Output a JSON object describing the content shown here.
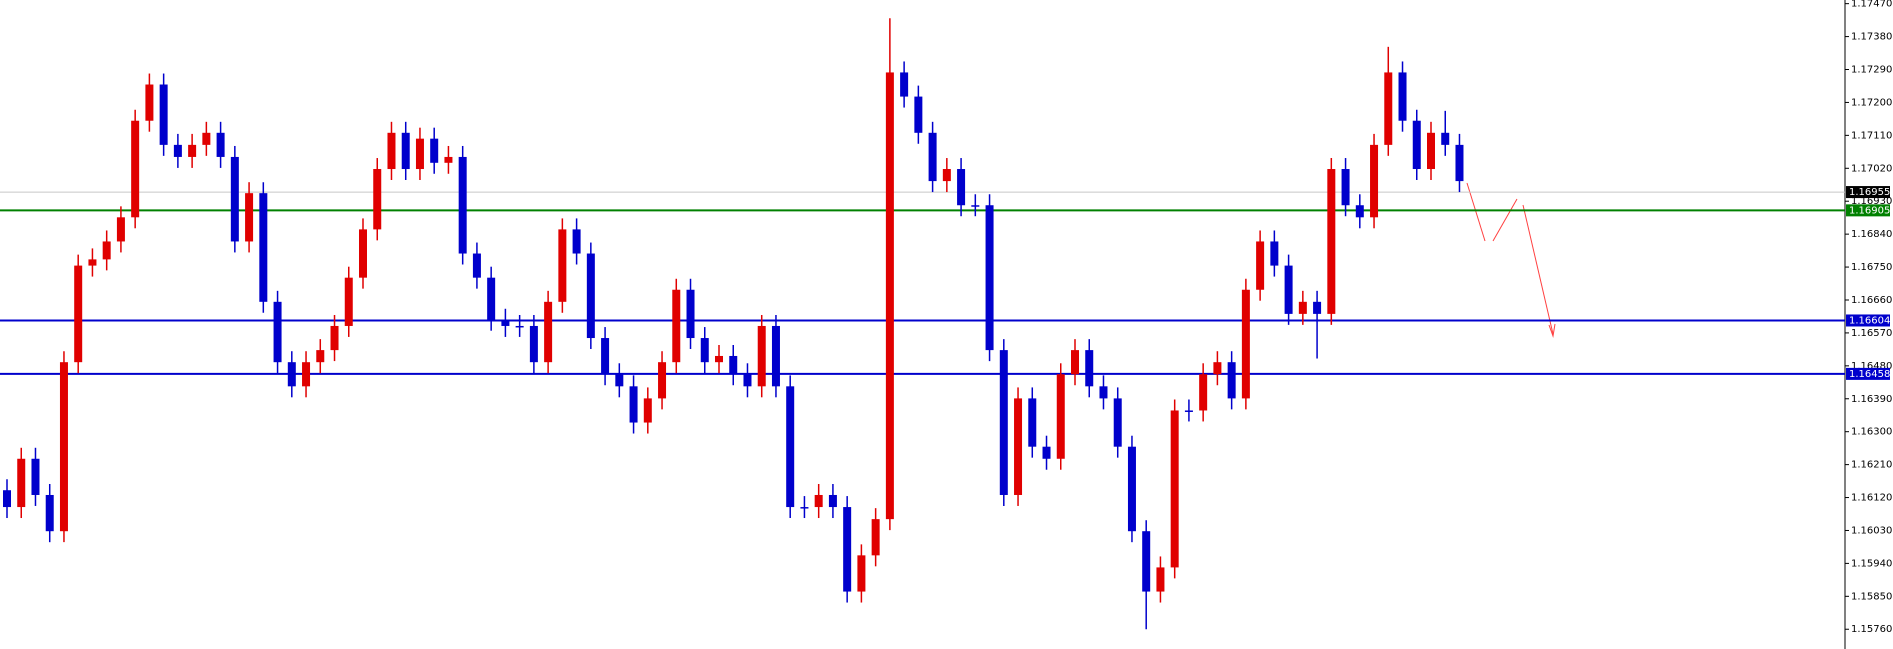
{
  "chart_data": {
    "type": "candlestick",
    "ylim": [
      1.15706,
      1.1748
    ],
    "yticks": [
      {
        "value": 1.1747,
        "label": "1.17470"
      },
      {
        "value": 1.1738,
        "label": "1.17380"
      },
      {
        "value": 1.1729,
        "label": "1.17290"
      },
      {
        "value": 1.172,
        "label": "1.17200"
      },
      {
        "value": 1.1711,
        "label": "1.17110"
      },
      {
        "value": 1.1702,
        "label": "1.17020"
      },
      {
        "value": 1.1693,
        "label": "1.16930"
      },
      {
        "value": 1.1684,
        "label": "1.16840"
      },
      {
        "value": 1.1675,
        "label": "1.16750"
      },
      {
        "value": 1.1666,
        "label": "1.16660"
      },
      {
        "value": 1.1657,
        "label": "1.16570"
      },
      {
        "value": 1.1648,
        "label": "1.16480"
      },
      {
        "value": 1.1639,
        "label": "1.16390"
      },
      {
        "value": 1.163,
        "label": "1.16300"
      },
      {
        "value": 1.1621,
        "label": "1.16210"
      },
      {
        "value": 1.1612,
        "label": "1.16120"
      },
      {
        "value": 1.1603,
        "label": "1.16030"
      },
      {
        "value": 1.1594,
        "label": "1.15940"
      },
      {
        "value": 1.1585,
        "label": "1.15850"
      },
      {
        "value": 1.1576,
        "label": "1.15760"
      }
    ],
    "up_color": "#e00000",
    "down_color": "#0000cc",
    "open": [
      1.1614,
      1.16094,
      1.16226,
      1.16127,
      1.16028,
      1.1649,
      1.16754,
      1.16771,
      1.1682,
      1.16886,
      1.1715,
      1.17249,
      1.17084,
      1.17051,
      1.17084,
      1.17117,
      1.17051,
      1.1682,
      1.16952,
      1.16655,
      1.1649,
      1.16424,
      1.1649,
      1.16523,
      1.16589,
      1.16721,
      1.16853,
      1.17018,
      1.17117,
      1.17018,
      1.17101,
      1.17035,
      1.17051,
      1.16787,
      1.16721,
      1.16606,
      1.16589,
      1.16589,
      1.1649,
      1.16655,
      1.16853,
      1.16787,
      1.16556,
      1.16457,
      1.16424,
      1.16325,
      1.16391,
      1.1649,
      1.16688,
      1.16556,
      1.1649,
      1.16507,
      1.16457,
      1.16424,
      1.16589,
      1.16424,
      1.16094,
      1.16094,
      1.16127,
      1.16094,
      1.15863,
      1.15962,
      1.16061,
      1.17282,
      1.17216,
      1.17117,
      1.16985,
      1.17018,
      1.16919,
      1.16919,
      1.16523,
      1.16127,
      1.16391,
      1.16259,
      1.16226,
      1.16457,
      1.16523,
      1.16424,
      1.16391,
      1.16259,
      1.16028,
      1.15863,
      1.15929,
      1.16358,
      1.16358,
      1.16457,
      1.1649,
      1.16391,
      1.16688,
      1.1682,
      1.16754,
      1.16622,
      1.16655,
      1.16622,
      1.17018,
      1.16919,
      1.16886,
      1.17084,
      1.17282,
      1.1715,
      1.17018,
      1.17117,
      1.17084
    ],
    "high": [
      1.1617,
      1.16256,
      1.16256,
      1.16157,
      1.1652,
      1.16784,
      1.16801,
      1.1685,
      1.16916,
      1.1718,
      1.17279,
      1.17279,
      1.17114,
      1.17114,
      1.17147,
      1.17147,
      1.17081,
      1.16982,
      1.16982,
      1.16685,
      1.1652,
      1.1652,
      1.16553,
      1.16619,
      1.16751,
      1.16883,
      1.17048,
      1.17147,
      1.17147,
      1.17131,
      1.17131,
      1.17081,
      1.17081,
      1.16817,
      1.16751,
      1.16636,
      1.16619,
      1.16619,
      1.16685,
      1.16883,
      1.16883,
      1.16817,
      1.16586,
      1.16487,
      1.16454,
      1.16421,
      1.1652,
      1.16718,
      1.16718,
      1.16586,
      1.16537,
      1.16537,
      1.16487,
      1.16619,
      1.16619,
      1.16454,
      1.16124,
      1.16157,
      1.16157,
      1.16124,
      1.15992,
      1.16091,
      1.1743,
      1.17312,
      1.17246,
      1.17147,
      1.17048,
      1.17048,
      1.16949,
      1.16949,
      1.16553,
      1.16421,
      1.16421,
      1.16289,
      1.16487,
      1.16553,
      1.16553,
      1.16454,
      1.16421,
      1.16289,
      1.16058,
      1.15959,
      1.16388,
      1.16388,
      1.16487,
      1.1652,
      1.1652,
      1.16718,
      1.1685,
      1.1685,
      1.16784,
      1.16685,
      1.16685,
      1.17048,
      1.17048,
      1.16949,
      1.17114,
      1.17352,
      1.17312,
      1.1718,
      1.17147,
      1.17177,
      1.17114
    ],
    "low": [
      1.16064,
      1.16064,
      1.16097,
      1.15998,
      1.15998,
      1.1646,
      1.16724,
      1.16741,
      1.1679,
      1.16856,
      1.1712,
      1.17054,
      1.17021,
      1.17021,
      1.17054,
      1.17021,
      1.1679,
      1.1679,
      1.16625,
      1.1646,
      1.16394,
      1.16394,
      1.1646,
      1.16493,
      1.16559,
      1.16691,
      1.16823,
      1.16988,
      1.16988,
      1.16988,
      1.17005,
      1.17005,
      1.16757,
      1.16691,
      1.16576,
      1.16559,
      1.16559,
      1.1646,
      1.1646,
      1.16625,
      1.16757,
      1.16526,
      1.16427,
      1.16394,
      1.16295,
      1.16295,
      1.16361,
      1.1646,
      1.16526,
      1.1646,
      1.1646,
      1.16427,
      1.16394,
      1.16394,
      1.16394,
      1.16064,
      1.16064,
      1.16064,
      1.16064,
      1.15833,
      1.15833,
      1.15932,
      1.16031,
      1.17186,
      1.17087,
      1.16955,
      1.16955,
      1.16889,
      1.16889,
      1.16493,
      1.16097,
      1.16097,
      1.16229,
      1.16196,
      1.16196,
      1.16427,
      1.16394,
      1.16361,
      1.16229,
      1.15998,
      1.1576,
      1.15833,
      1.15899,
      1.16328,
      1.16328,
      1.16427,
      1.16361,
      1.16361,
      1.16658,
      1.16724,
      1.16592,
      1.16592,
      1.165,
      1.16592,
      1.16889,
      1.16856,
      1.16856,
      1.17054,
      1.1712,
      1.16988,
      1.16988,
      1.17054,
      1.16955
    ],
    "close": [
      1.16094,
      1.16226,
      1.16127,
      1.16028,
      1.1649,
      1.16754,
      1.16771,
      1.1682,
      1.16886,
      1.1715,
      1.17249,
      1.17084,
      1.17051,
      1.17084,
      1.17117,
      1.17051,
      1.1682,
      1.16952,
      1.16655,
      1.1649,
      1.16424,
      1.1649,
      1.16523,
      1.16589,
      1.16721,
      1.16853,
      1.17018,
      1.17117,
      1.17018,
      1.17101,
      1.17035,
      1.17051,
      1.16787,
      1.16721,
      1.16606,
      1.16589,
      1.16589,
      1.1649,
      1.16655,
      1.16853,
      1.16787,
      1.16556,
      1.16457,
      1.16424,
      1.16325,
      1.16391,
      1.1649,
      1.16688,
      1.16556,
      1.1649,
      1.16507,
      1.16457,
      1.16424,
      1.16589,
      1.16424,
      1.16094,
      1.16094,
      1.16127,
      1.16094,
      1.15863,
      1.15962,
      1.16061,
      1.17282,
      1.17216,
      1.17117,
      1.16985,
      1.17018,
      1.16919,
      1.16919,
      1.16523,
      1.16127,
      1.16391,
      1.16259,
      1.16226,
      1.16457,
      1.16523,
      1.16424,
      1.16391,
      1.16259,
      1.16028,
      1.15863,
      1.15929,
      1.16358,
      1.16358,
      1.16457,
      1.1649,
      1.16391,
      1.16688,
      1.1682,
      1.16754,
      1.16622,
      1.16655,
      1.16622,
      1.17018,
      1.16919,
      1.16886,
      1.17084,
      1.17282,
      1.1715,
      1.17018,
      1.17117,
      1.17084,
      1.16985
    ],
    "levels": [
      {
        "value": 1.16955,
        "color": "#c8c8c8",
        "box": "#000000"
      },
      {
        "value": 1.16905,
        "color": "#008000",
        "box": "#008000"
      },
      {
        "value": 1.16604,
        "color": "#0000cc",
        "box": "#0000cc"
      },
      {
        "value": 1.16458,
        "color": "#0000cc",
        "box": "#0000cc"
      }
    ]
  }
}
